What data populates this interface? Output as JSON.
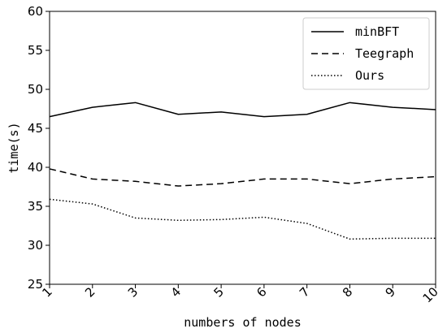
{
  "chart_data": {
    "type": "line",
    "title": "",
    "xlabel": "numbers of nodes",
    "ylabel": "time(s)",
    "x": [
      1,
      2,
      3,
      4,
      5,
      6,
      7,
      8,
      9,
      10
    ],
    "xlim": [
      1,
      10
    ],
    "ylim": [
      25,
      60
    ],
    "yticks": [
      25,
      30,
      35,
      40,
      45,
      50,
      55,
      60
    ],
    "xticks": [
      1,
      2,
      3,
      4,
      5,
      6,
      7,
      8,
      9,
      10
    ],
    "grid": false,
    "legend_position": "top-right",
    "series": [
      {
        "name": "minBFT",
        "style": "solid",
        "color": "#000000",
        "values": [
          46.5,
          47.7,
          48.3,
          46.8,
          47.1,
          46.5,
          46.8,
          48.3,
          47.7,
          47.4
        ]
      },
      {
        "name": "Teegraph",
        "style": "dashed",
        "color": "#000000",
        "values": [
          39.8,
          38.5,
          38.2,
          37.6,
          37.9,
          38.5,
          38.5,
          37.9,
          38.5,
          38.8
        ]
      },
      {
        "name": "Ours",
        "style": "dotted",
        "color": "#000000",
        "values": [
          35.9,
          35.3,
          33.5,
          33.2,
          33.3,
          33.6,
          32.8,
          30.8,
          30.9,
          30.9
        ]
      }
    ]
  }
}
